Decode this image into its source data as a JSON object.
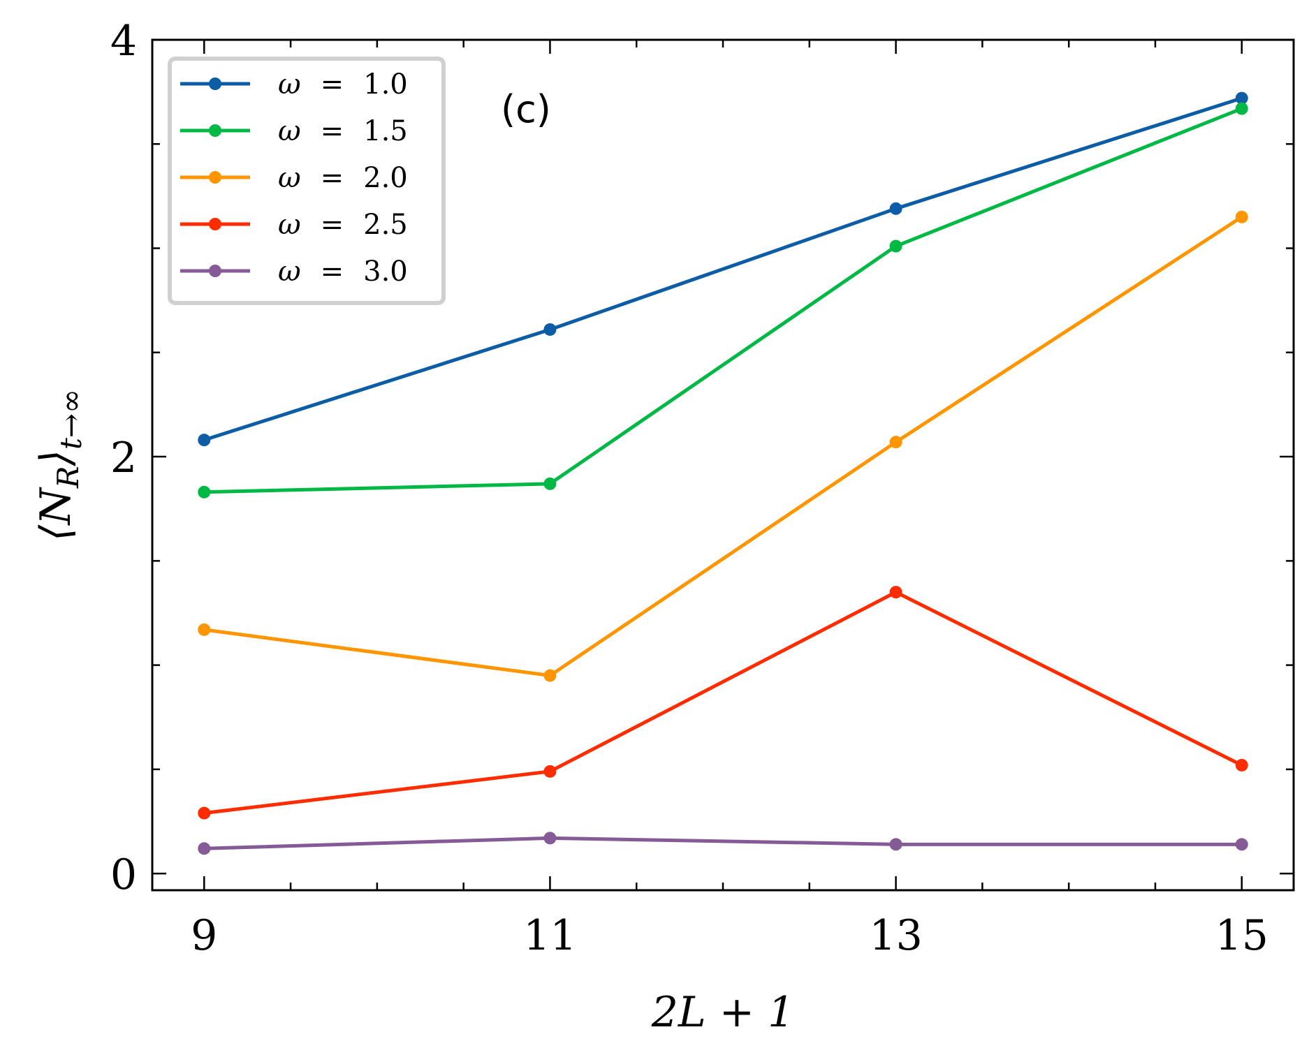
{
  "chart_data": {
    "type": "line",
    "panel_label": "(c)",
    "xlabel": "2L + 1",
    "ylabel": "⟨N_R⟩_{t→∞}",
    "ylabel_main": "⟨N",
    "ylabel_sub": "R",
    "ylabel_close": "⟩",
    "ylabel_sub2": "t→∞",
    "xlim": [
      8.7,
      15.3
    ],
    "ylim": [
      -0.08,
      4.0
    ],
    "x": [
      9,
      11,
      13,
      15
    ],
    "x_ticks": [
      9,
      11,
      13,
      15
    ],
    "x_tick_labels": [
      "9",
      "11",
      "13",
      "15"
    ],
    "y_ticks": [
      0,
      2,
      4
    ],
    "y_tick_labels": [
      "0",
      "2",
      "4"
    ],
    "x_minor_step": 0.5,
    "y_minor_step": 0.5,
    "legend_position": "top-left",
    "series": [
      {
        "name": "ω = 1.0",
        "omega_symbol": "ω",
        "eq": "=",
        "value_text": "1.0",
        "color": "#0C5DA5",
        "values": [
          2.08,
          2.61,
          3.19,
          3.72
        ]
      },
      {
        "name": "ω = 1.5",
        "omega_symbol": "ω",
        "eq": "=",
        "value_text": "1.5",
        "color": "#00B945",
        "values": [
          1.83,
          1.87,
          3.01,
          3.67
        ]
      },
      {
        "name": "ω = 2.0",
        "omega_symbol": "ω",
        "eq": "=",
        "value_text": "2.0",
        "color": "#FF9500",
        "values": [
          1.17,
          0.95,
          2.07,
          3.15
        ]
      },
      {
        "name": "ω = 2.5",
        "omega_symbol": "ω",
        "eq": "=",
        "value_text": "2.5",
        "color": "#FF2C00",
        "values": [
          0.29,
          0.49,
          1.35,
          0.52
        ]
      },
      {
        "name": "ω = 3.0",
        "omega_symbol": "ω",
        "eq": "=",
        "value_text": "3.0",
        "color": "#845B97",
        "values": [
          0.12,
          0.17,
          0.14,
          0.14
        ]
      }
    ]
  }
}
